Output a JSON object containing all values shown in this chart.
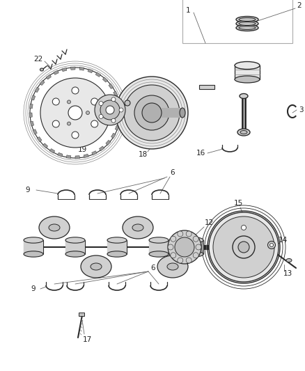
{
  "bg_color": "#ffffff",
  "dc": "#2a2a2a",
  "lc": "#555555",
  "gc": "#666666",
  "pc": "#aaaaaa",
  "fc": "#e8e8e8",
  "fc2": "#d0d0d0",
  "fc3": "#c0c0c0"
}
